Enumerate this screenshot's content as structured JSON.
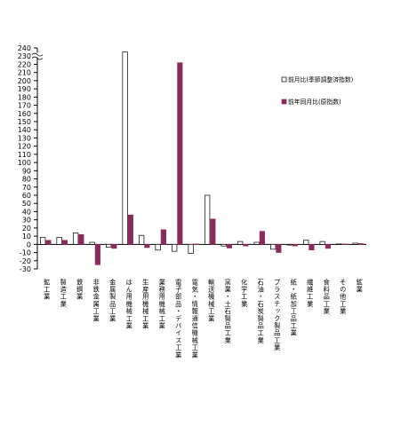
{
  "chart_data": {
    "type": "bar",
    "ylim": [
      -30,
      240
    ],
    "y_ticks": [
      -30,
      -20,
      -10,
      0,
      10,
      20,
      30,
      40,
      50,
      60,
      70,
      80,
      90,
      100,
      110,
      120,
      130,
      140,
      150,
      160,
      170,
      180,
      190,
      200,
      210,
      220,
      230,
      240
    ],
    "axis_break": true,
    "legend_position": "right",
    "categories": [
      "鉱工業",
      "製造工業",
      "鉄鋼業",
      "非鉄金属工業",
      "金属製品工業",
      "はん用機械工業",
      "生産用機械工業",
      "業務用機械工業",
      "電子部品・デバイス工業",
      "電気・情報通信機械工業",
      "輸送機械工業",
      "窯業・土石製品工業",
      "化学工業",
      "石油・石炭製品工業",
      "プラスチック製品工業",
      "紙・紙加工品工業",
      "繊維工業",
      "食料品工業",
      "その他工業",
      "鉱業"
    ],
    "series": [
      {
        "name": "前月比(季節調整済指数)",
        "color": "#ffffff",
        "values": [
          8.5,
          8.5,
          14,
          2.5,
          -3.5,
          235,
          11,
          -7,
          -8.5,
          -11,
          60,
          -2,
          3.5,
          2.5,
          -6,
          0,
          5,
          3.5,
          0.5,
          1.5
        ]
      },
      {
        "name": "前年同月比(原指数)",
        "color": "#8b2a5c",
        "values": [
          5,
          5,
          12,
          -25,
          -5,
          36,
          -4,
          18,
          222,
          0.5,
          31,
          -4.5,
          -2,
          16,
          -10,
          -2,
          -7,
          -5,
          0.5,
          1
        ]
      }
    ]
  }
}
